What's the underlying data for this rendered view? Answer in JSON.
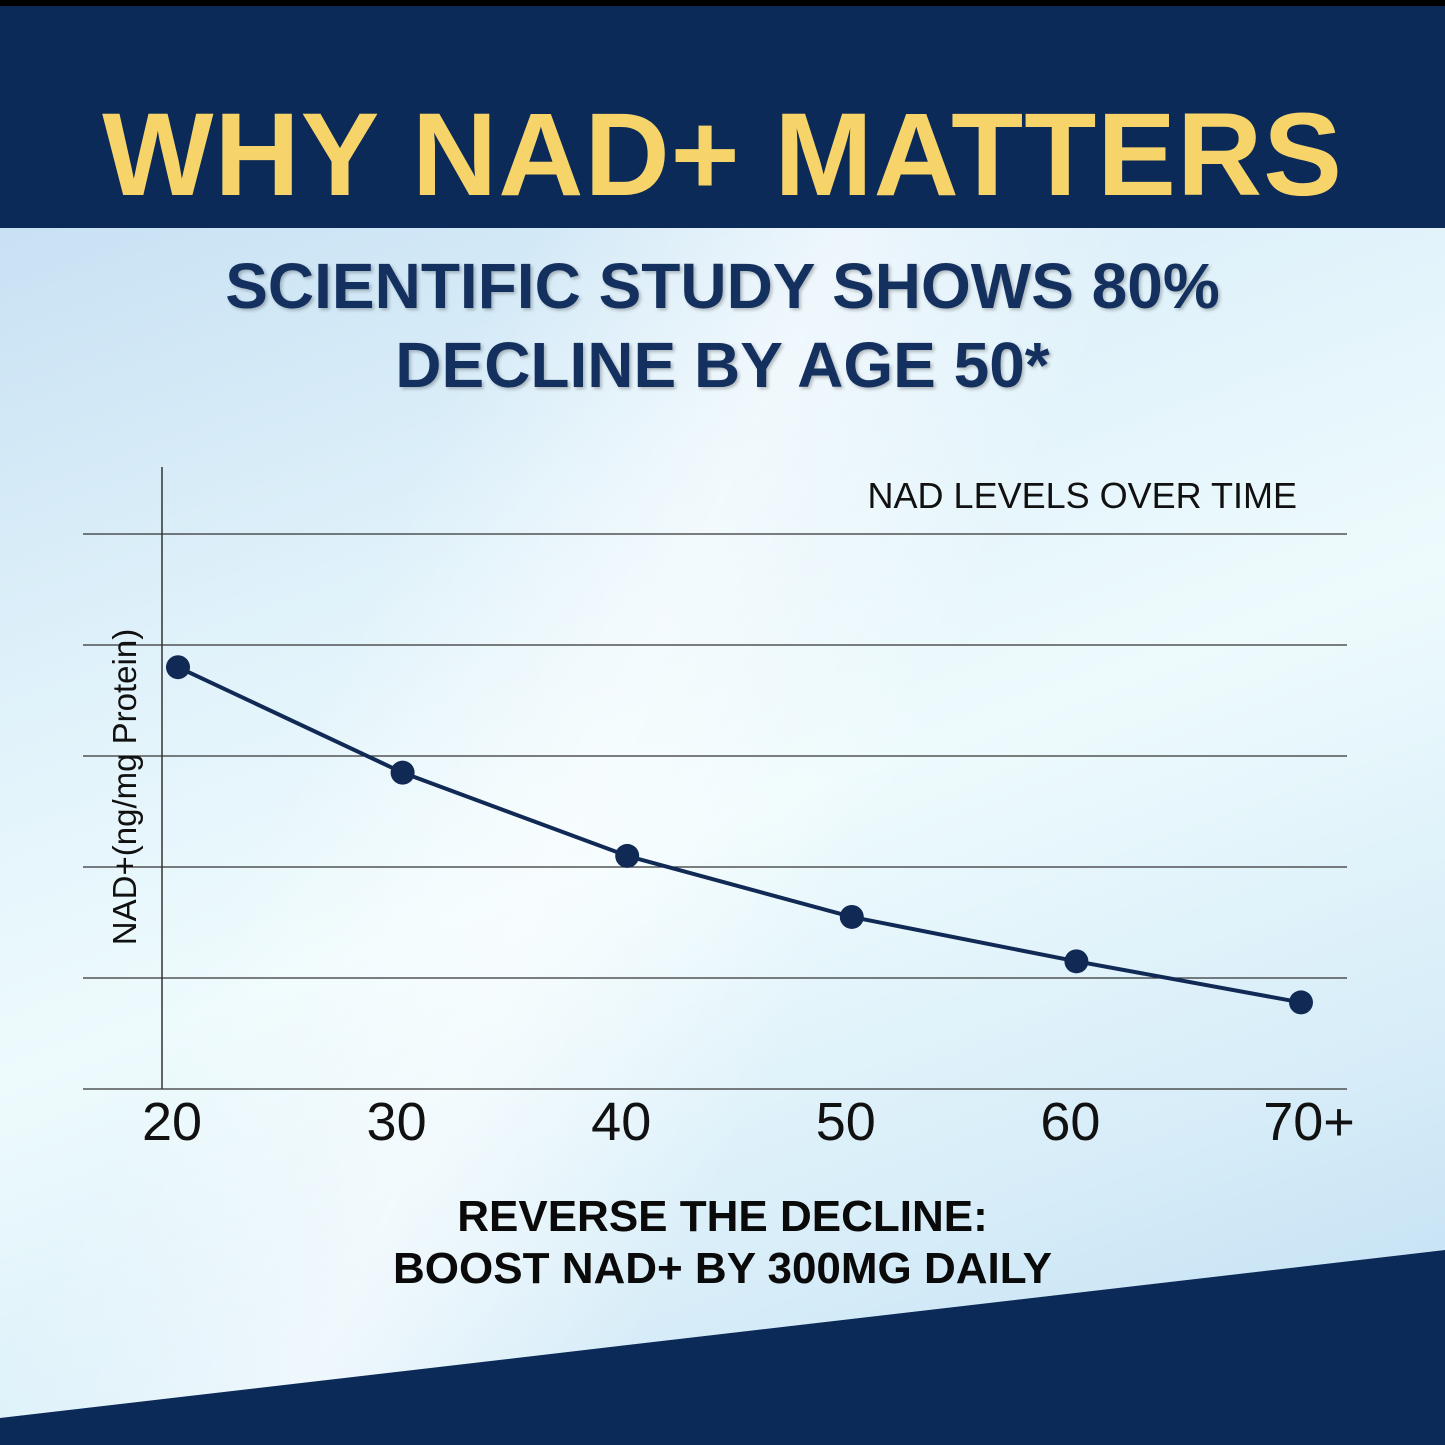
{
  "banner": {
    "title": "WHY NAD+ MATTERS",
    "headline_line1": "SCIENTIFIC STUDY SHOWS 80%",
    "headline_line2": "DECLINE BY AGE 50*"
  },
  "chart_data": {
    "type": "line",
    "title": "NAD LEVELS OVER TIME",
    "ylabel": "NAD+(ng/mg Protein)",
    "xlabel": "",
    "categories": [
      "20",
      "30",
      "40",
      "50",
      "60",
      "70+"
    ],
    "series": [
      {
        "values": [
          3.8,
          2.85,
          2.1,
          1.55,
          1.15,
          0.78
        ]
      }
    ],
    "ylim": [
      0,
      5
    ],
    "grid": true,
    "y_tick_labels_shown": false,
    "colors": {
      "line": "#102a55",
      "grid": "#333333"
    }
  },
  "cta": {
    "line1": "REVERSE THE DECLINE:",
    "line2": "BOOST NAD+ BY 300MG DAILY"
  },
  "colors": {
    "navy": "#0c2a58",
    "gold": "#f7d46a",
    "headline": "#14305e"
  }
}
